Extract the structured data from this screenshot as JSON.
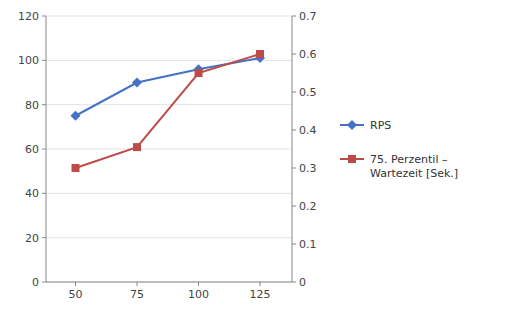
{
  "chart_data": {
    "type": "line",
    "x": [
      50,
      75,
      100,
      125
    ],
    "series": [
      {
        "name": "RPS",
        "color": "#4472C4",
        "values": [
          75,
          90,
          96,
          101
        ],
        "marker": "diamond"
      },
      {
        "name": "75. Perzentil –\nWartezeit [Sek.]",
        "color": "#BE4B48",
        "values": [
          0.3,
          0.355,
          0.55,
          0.6
        ],
        "marker": "square",
        "axis": "y2"
      }
    ],
    "xlim": [
      38,
      138
    ],
    "xticks": [
      50,
      75,
      100,
      125
    ],
    "ylim": [
      0,
      120
    ],
    "yticks": [
      0,
      20,
      40,
      60,
      80,
      100,
      120
    ],
    "y2lim": [
      0,
      0.7
    ],
    "y2ticks": [
      0,
      0.1,
      0.2,
      0.3,
      0.4,
      0.5,
      0.6,
      0.7
    ],
    "grid": "y",
    "legend": "right"
  }
}
